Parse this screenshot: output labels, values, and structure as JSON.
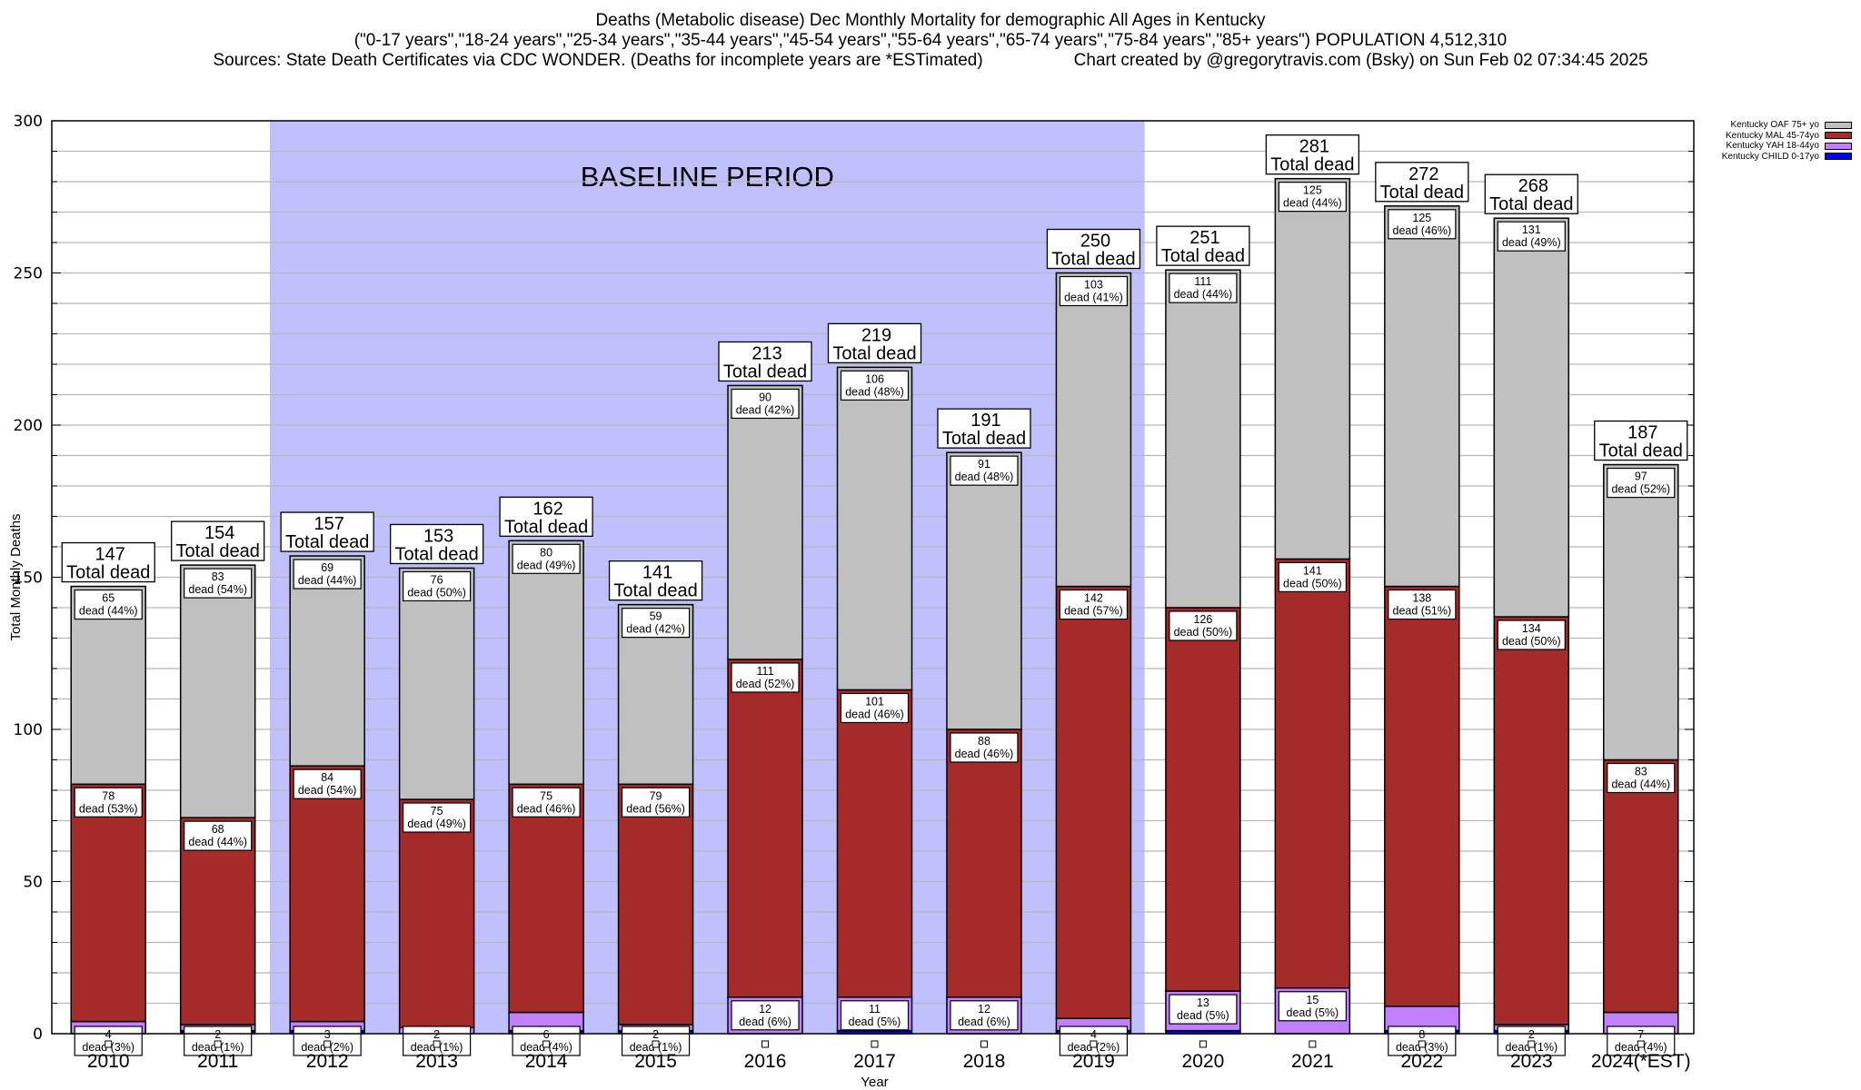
{
  "header": {
    "title": "Deaths (Metabolic disease) Dec Monthly Mortality for demographic All Ages in Kentucky",
    "subtitle": "(\"0-17 years\",\"18-24 years\",\"25-34 years\",\"35-44 years\",\"45-54 years\",\"55-64 years\",\"65-74 years\",\"75-84 years\",\"85+ years\") POPULATION 4,512,310",
    "sources": "Sources: State Death Certificates via CDC WONDER. (Deaths for incomplete years are *ESTimated)",
    "credit": "Chart created by @gregorytravis.com (Bsky) on Sun Feb 02 07:34:45 2025"
  },
  "chart_data": {
    "type": "bar",
    "stacked": true,
    "title": "Deaths (Metabolic disease) Dec Monthly Mortality for demographic All Ages in Kentucky",
    "xlabel": "Year",
    "ylabel": "Total Monthly Deaths",
    "ylim": [
      0,
      300
    ],
    "yticks": [
      0,
      50,
      100,
      150,
      200,
      250,
      300
    ],
    "minor_tick_step": 10,
    "grid": true,
    "legend_position": "top-right",
    "categories": [
      "2010",
      "2011",
      "2012",
      "2013",
      "2014",
      "2015",
      "2016",
      "2017",
      "2018",
      "2019",
      "2020",
      "2021",
      "2022",
      "2023",
      "2024(*EST)"
    ],
    "series": [
      {
        "name": "Kentucky CHILD 0-17yo",
        "color": "#0000ff",
        "values": [
          0,
          1,
          1,
          0,
          1,
          1,
          0,
          1,
          0,
          1,
          1,
          0,
          1,
          1,
          0
        ]
      },
      {
        "name": "Kentucky YAH 18-44yo",
        "color": "#c080ff",
        "values": [
          4,
          2,
          3,
          2,
          6,
          2,
          12,
          11,
          12,
          4,
          13,
          15,
          8,
          2,
          7
        ],
        "pct": [
          3,
          1,
          2,
          1,
          4,
          1,
          6,
          5,
          6,
          2,
          5,
          5,
          3,
          1,
          4
        ]
      },
      {
        "name": "Kentucky MAL 45-74yo",
        "color": "#a52a2a",
        "values": [
          78,
          68,
          84,
          75,
          75,
          79,
          111,
          101,
          88,
          142,
          126,
          141,
          138,
          134,
          83
        ],
        "pct": [
          53,
          44,
          54,
          49,
          46,
          56,
          52,
          46,
          46,
          57,
          50,
          50,
          51,
          50,
          44
        ]
      },
      {
        "name": "Kentucky OAF 75+ yo",
        "color": "#c0c0c0",
        "values": [
          65,
          83,
          69,
          76,
          80,
          59,
          90,
          106,
          91,
          103,
          111,
          125,
          125,
          131,
          97
        ],
        "pct": [
          44,
          54,
          44,
          50,
          49,
          42,
          42,
          48,
          48,
          41,
          44,
          44,
          46,
          49,
          52
        ]
      }
    ],
    "totals": [
      147,
      154,
      157,
      153,
      162,
      141,
      213,
      219,
      191,
      250,
      251,
      281,
      272,
      268,
      187
    ],
    "total_label_suffix": "Total dead",
    "segment_label_prefix": "dead",
    "annotations": [
      {
        "text": "BASELINE PERIOD",
        "from_category": "2012",
        "to_category": "2019",
        "color": "#c0c0ff"
      }
    ]
  },
  "legend": {
    "items": [
      {
        "label": "Kentucky OAF 75+ yo",
        "color": "#c0c0c0"
      },
      {
        "label": "Kentucky MAL 45-74yo",
        "color": "#a52a2a"
      },
      {
        "label": "Kentucky YAH 18-44yo",
        "color": "#c080ff"
      },
      {
        "label": "Kentucky CHILD 0-17yo",
        "color": "#0000ff"
      }
    ]
  }
}
